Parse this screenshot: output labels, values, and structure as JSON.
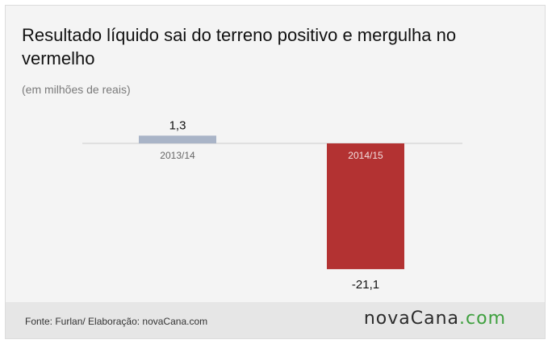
{
  "header": {
    "title": "Resultado líquido sai do terreno positivo e mergulha no vermelho",
    "subtitle": "(em milhões de reais)"
  },
  "chart_data": {
    "type": "bar",
    "categories": [
      "2013/14",
      "2014/15"
    ],
    "values": [
      1.3,
      -21.1
    ],
    "value_labels": [
      "1,3",
      "-21,1"
    ],
    "title": "Resultado líquido sai do terreno positivo e mergulha no vermelho",
    "ylabel": "(em milhões de reais)",
    "xlabel": "",
    "grid": false,
    "legend": "none",
    "colors": {
      "positive": "#a9b4c7",
      "negative": "#b33232",
      "baseline": "#cccccc"
    }
  },
  "footer": {
    "source": "Fonte: Furlan/ Elaboração: novaCana.com",
    "logo_main": "novaCana",
    "logo_suffix": ".com"
  }
}
